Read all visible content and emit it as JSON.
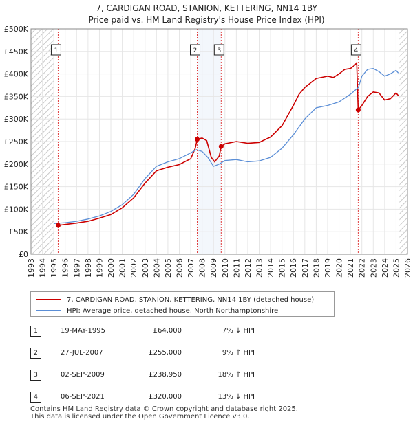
{
  "title_line1": "7, CARDIGAN ROAD, STANION, KETTERING, NN14 1BY",
  "title_line2": "Price paid vs. HM Land Registry's House Price Index (HPI)",
  "colors": {
    "property": "#cc0000",
    "hpi": "#5b8ed6",
    "hatch": "#cccccc",
    "band": "#dde8f6",
    "marker_line": "#e04040"
  },
  "chart_data": {
    "type": "line",
    "xlim": [
      1993,
      2026
    ],
    "ylim": [
      0,
      500000
    ],
    "x_ticks": [
      1993,
      1994,
      1995,
      1996,
      1997,
      1998,
      1999,
      2000,
      2001,
      2002,
      2003,
      2004,
      2005,
      2006,
      2007,
      2008,
      2009,
      2010,
      2011,
      2012,
      2013,
      2014,
      2015,
      2016,
      2017,
      2018,
      2019,
      2020,
      2021,
      2022,
      2023,
      2024,
      2025,
      2026
    ],
    "y_ticks": [
      {
        "value": 0,
        "label": "£0"
      },
      {
        "value": 50000,
        "label": "£50K"
      },
      {
        "value": 100000,
        "label": "£100K"
      },
      {
        "value": 150000,
        "label": "£150K"
      },
      {
        "value": 200000,
        "label": "£200K"
      },
      {
        "value": 250000,
        "label": "£250K"
      },
      {
        "value": 300000,
        "label": "£300K"
      },
      {
        "value": 350000,
        "label": "£350K"
      },
      {
        "value": 400000,
        "label": "£400K"
      },
      {
        "value": 450000,
        "label": "£450K"
      },
      {
        "value": 500000,
        "label": "£500K"
      }
    ],
    "data_start": 1995.0,
    "data_end": 2025.3,
    "series": [
      {
        "name": "7, CARDIGAN ROAD, STANION, KETTERING, NN14 1BY (detached house)",
        "points": [
          [
            1995.38,
            64000
          ],
          [
            1996.0,
            66000
          ],
          [
            1997.0,
            69000
          ],
          [
            1998.0,
            73000
          ],
          [
            1999.0,
            80000
          ],
          [
            2000.0,
            88000
          ],
          [
            2001.0,
            103000
          ],
          [
            2002.0,
            125000
          ],
          [
            2003.0,
            158000
          ],
          [
            2004.0,
            185000
          ],
          [
            2005.0,
            193000
          ],
          [
            2006.0,
            199000
          ],
          [
            2007.0,
            212000
          ],
          [
            2007.4,
            235000
          ],
          [
            2007.57,
            255000
          ],
          [
            2008.0,
            258000
          ],
          [
            2008.4,
            252000
          ],
          [
            2008.8,
            215000
          ],
          [
            2009.1,
            205000
          ],
          [
            2009.5,
            218000
          ],
          [
            2009.67,
            238950
          ],
          [
            2010.0,
            245000
          ],
          [
            2011.0,
            250000
          ],
          [
            2012.0,
            246000
          ],
          [
            2013.0,
            248000
          ],
          [
            2014.0,
            260000
          ],
          [
            2015.0,
            285000
          ],
          [
            2016.0,
            330000
          ],
          [
            2016.5,
            355000
          ],
          [
            2017.0,
            370000
          ],
          [
            2018.0,
            390000
          ],
          [
            2019.0,
            395000
          ],
          [
            2019.5,
            392000
          ],
          [
            2020.0,
            400000
          ],
          [
            2020.5,
            410000
          ],
          [
            2021.0,
            412000
          ],
          [
            2021.4,
            420000
          ],
          [
            2021.55,
            425000
          ],
          [
            2021.68,
            320000
          ],
          [
            2022.0,
            330000
          ],
          [
            2022.5,
            350000
          ],
          [
            2023.0,
            360000
          ],
          [
            2023.5,
            358000
          ],
          [
            2024.0,
            342000
          ],
          [
            2024.5,
            345000
          ],
          [
            2025.0,
            358000
          ],
          [
            2025.2,
            352000
          ]
        ]
      },
      {
        "name": "HPI: Average price, detached house, North Northamptonshire",
        "points": [
          [
            1995.0,
            68000
          ],
          [
            1996.0,
            70000
          ],
          [
            1997.0,
            73000
          ],
          [
            1998.0,
            78000
          ],
          [
            1999.0,
            85000
          ],
          [
            2000.0,
            95000
          ],
          [
            2001.0,
            110000
          ],
          [
            2002.0,
            133000
          ],
          [
            2003.0,
            168000
          ],
          [
            2004.0,
            195000
          ],
          [
            2005.0,
            205000
          ],
          [
            2006.0,
            212000
          ],
          [
            2007.0,
            225000
          ],
          [
            2007.5,
            232000
          ],
          [
            2008.0,
            228000
          ],
          [
            2008.5,
            215000
          ],
          [
            2009.0,
            195000
          ],
          [
            2009.5,
            200000
          ],
          [
            2010.0,
            208000
          ],
          [
            2011.0,
            210000
          ],
          [
            2012.0,
            205000
          ],
          [
            2013.0,
            207000
          ],
          [
            2014.0,
            215000
          ],
          [
            2015.0,
            235000
          ],
          [
            2016.0,
            265000
          ],
          [
            2017.0,
            300000
          ],
          [
            2018.0,
            325000
          ],
          [
            2019.0,
            330000
          ],
          [
            2020.0,
            338000
          ],
          [
            2021.0,
            355000
          ],
          [
            2021.7,
            370000
          ],
          [
            2022.0,
            395000
          ],
          [
            2022.5,
            410000
          ],
          [
            2023.0,
            412000
          ],
          [
            2023.5,
            405000
          ],
          [
            2024.0,
            395000
          ],
          [
            2024.5,
            400000
          ],
          [
            2025.0,
            408000
          ],
          [
            2025.2,
            402000
          ]
        ]
      }
    ],
    "markers": [
      {
        "label": "1",
        "x": 1995.38,
        "value": 64000
      },
      {
        "label": "2",
        "x": 2007.57,
        "value": 255000
      },
      {
        "label": "3",
        "x": 2009.67,
        "value": 238950
      },
      {
        "label": "4",
        "x": 2021.68,
        "value": 320000
      }
    ]
  },
  "legend": {
    "property": "7, CARDIGAN ROAD, STANION, KETTERING, NN14 1BY (detached house)",
    "hpi": "HPI: Average price, detached house, North Northamptonshire"
  },
  "transactions": [
    {
      "num": "1",
      "date": "19-MAY-1995",
      "price": "£64,000",
      "hpi": "7% ↓ HPI"
    },
    {
      "num": "2",
      "date": "27-JUL-2007",
      "price": "£255,000",
      "hpi": "9% ↑ HPI"
    },
    {
      "num": "3",
      "date": "02-SEP-2009",
      "price": "£238,950",
      "hpi": "18% ↑ HPI"
    },
    {
      "num": "4",
      "date": "06-SEP-2021",
      "price": "£320,000",
      "hpi": "13% ↓ HPI"
    }
  ],
  "footer": {
    "line1": "Contains HM Land Registry data © Crown copyright and database right 2025.",
    "line2": "This data is licensed under the Open Government Licence v3.0."
  }
}
